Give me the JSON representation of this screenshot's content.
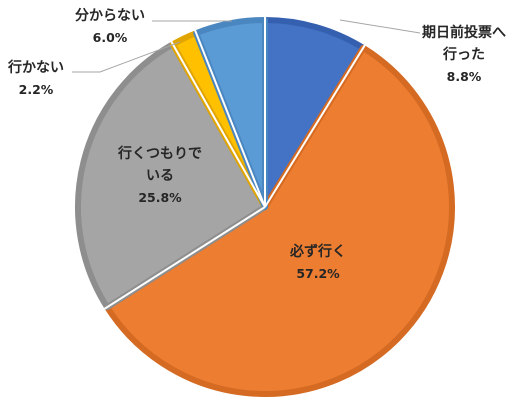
{
  "chart_data": {
    "type": "pie",
    "title": "",
    "slices": [
      {
        "name": "期日前投票へ行った",
        "name_lines": [
          "期日前投票へ",
          "行った"
        ],
        "value": 8.8,
        "percent": "8.8%",
        "color": "#4472c4",
        "edge": "#3560b0"
      },
      {
        "name": "必ず行く",
        "name_lines": [
          "必ず行く"
        ],
        "value": 57.2,
        "percent": "57.2%",
        "color": "#ed7d31",
        "edge": "#d56a22"
      },
      {
        "name": "行くつもりでいる",
        "name_lines": [
          "行くつもりで",
          "いる"
        ],
        "value": 25.8,
        "percent": "25.8%",
        "color": "#a5a5a5",
        "edge": "#8e8e8e"
      },
      {
        "name": "行かない",
        "name_lines": [
          "行かない"
        ],
        "value": 2.2,
        "percent": "2.2%",
        "color": "#ffc000",
        "edge": "#e0a500"
      },
      {
        "name": "分からない",
        "name_lines": [
          "分からない"
        ],
        "value": 6.0,
        "percent": "6.0%",
        "color": "#5b9bd5",
        "edge": "#4a86bf"
      }
    ]
  }
}
